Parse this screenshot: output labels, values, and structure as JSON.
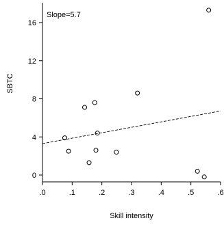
{
  "chart_data": {
    "type": "scatter",
    "title": "",
    "xlabel": "Skill intensity",
    "ylabel": "SBTC",
    "xlim": [
      0,
      0.6
    ],
    "ylim": [
      -1,
      18
    ],
    "x_ticks": [
      0,
      0.1,
      0.2,
      0.3,
      0.4,
      0.5,
      0.6
    ],
    "x_tick_labels": [
      ".0",
      ".1",
      ".2",
      ".3",
      ".4",
      ".5",
      ".6"
    ],
    "y_ticks": [
      0,
      4,
      8,
      12,
      16
    ],
    "y_tick_labels": [
      "0",
      "4",
      "8",
      "12",
      "16"
    ],
    "annotation": "Slope=5.7",
    "grid": false,
    "legend": "none",
    "points": [
      {
        "x": 0.075,
        "y": 3.9
      },
      {
        "x": 0.088,
        "y": 2.5
      },
      {
        "x": 0.142,
        "y": 7.1
      },
      {
        "x": 0.157,
        "y": 1.3
      },
      {
        "x": 0.176,
        "y": 7.6
      },
      {
        "x": 0.18,
        "y": 2.6
      },
      {
        "x": 0.185,
        "y": 4.4
      },
      {
        "x": 0.249,
        "y": 2.4
      },
      {
        "x": 0.32,
        "y": 8.6
      },
      {
        "x": 0.522,
        "y": 0.4
      },
      {
        "x": 0.545,
        "y": -0.2
      },
      {
        "x": 0.56,
        "y": 17.3
      }
    ],
    "fit_line": {
      "slope": 5.7,
      "intercept": 3.3,
      "style": "dashed"
    },
    "colors": {
      "marker": "#000000",
      "line": "#000000",
      "axis": "#000000"
    }
  }
}
